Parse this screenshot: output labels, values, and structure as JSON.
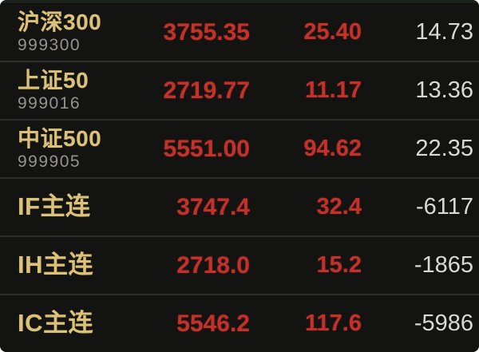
{
  "board": {
    "type": "stock-quote-list",
    "colors": {
      "background": "#131311",
      "separator": "#2c2c2a",
      "name_gold": "#dcc279",
      "code_gray": "#94938e",
      "price_red": "#c2322b",
      "value_white": "#d8d8d8"
    }
  },
  "table": {
    "rows": [
      {
        "name": "沪深300",
        "code": "999300",
        "price": "3755.35",
        "change": "25.40",
        "value": "14.73"
      },
      {
        "name": "上证50",
        "code": "999016",
        "price": "2719.77",
        "change": "11.17",
        "value": "13.36"
      },
      {
        "name": "中证500",
        "code": "999905",
        "price": "5551.00",
        "change": "94.62",
        "value": "22.35"
      },
      {
        "name": "IF主连",
        "price": "3747.4",
        "change": "32.4",
        "value": "-6117"
      },
      {
        "name": "IH主连",
        "price": "2718.0",
        "change": "15.2",
        "value": "-1865"
      },
      {
        "name": "IC主连",
        "price": "5546.2",
        "change": "117.6",
        "value": "-5986"
      }
    ]
  }
}
